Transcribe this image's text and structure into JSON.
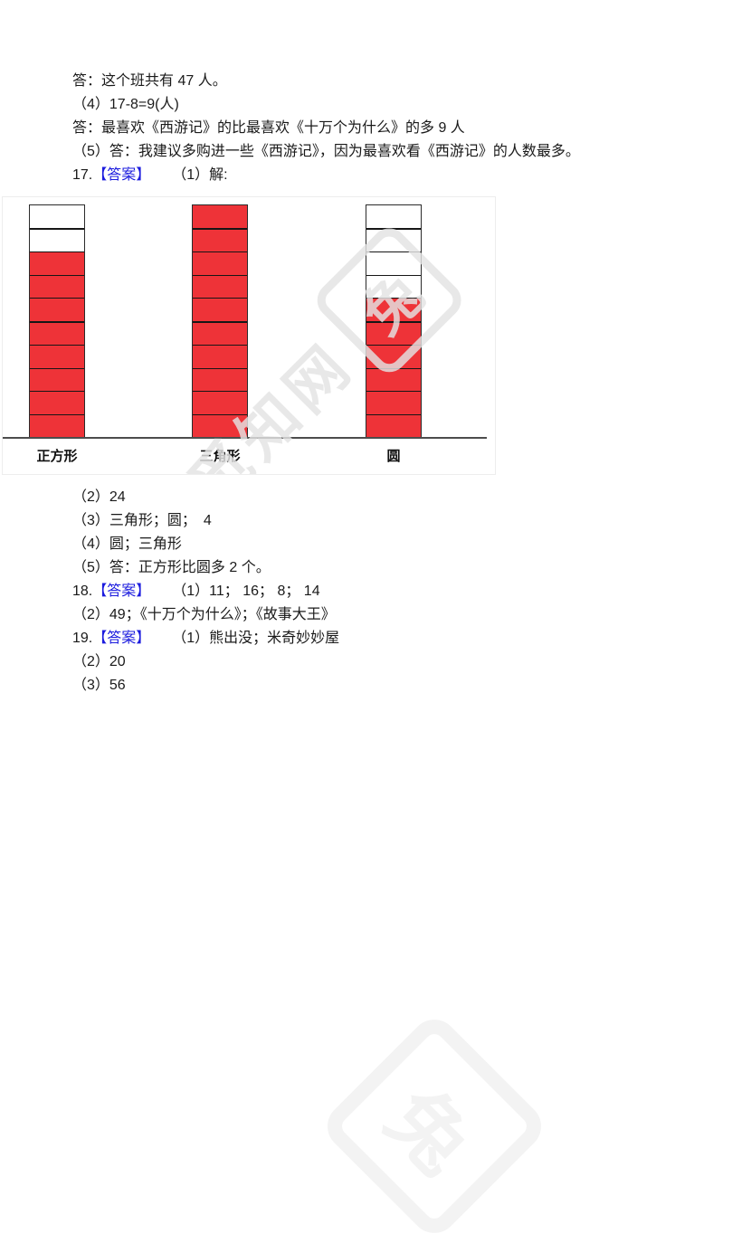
{
  "colors": {
    "answer_blue": "#1b1bde",
    "bar_red": "#ee3338",
    "watermark_overlay": "rgba(227,227,227,0.82)",
    "watermark_faint": "#f3f3f3",
    "axis_gray": "#4d4d4d"
  },
  "answers_top": [
    {
      "text": "答：这个班共有 47 人。"
    },
    {
      "text": "（4）17-8=9(人)"
    },
    {
      "text": "答：最喜欢《西游记》的比最喜欢《十万个为什么》的多 9 人"
    },
    {
      "text": "（5）答：我建议多购进一些《西游记》，因为最喜欢看《西游记》的人数最多。"
    },
    {
      "num": "17.",
      "badge": "【答案】",
      "text": "（1）解:"
    }
  ],
  "chart_data": {
    "type": "bar",
    "title": "",
    "xlabel": "",
    "ylabel": "",
    "categories": [
      "正方形",
      "三角形",
      "圆"
    ],
    "values": [
      8,
      10,
      6
    ],
    "grid_rows_per_column": 10,
    "value_per_cell": 1,
    "style": "pictograph of stacked unit squares, filled from bottom",
    "legend": "none"
  },
  "watermark": {
    "text": "觅知网",
    "logo_glyph": "兔"
  },
  "answers_bottom": [
    {
      "text": "（2）24"
    },
    {
      "text": "（3）三角形；圆；　4"
    },
    {
      "text": "（4）圆；三角形"
    },
    {
      "text": "（5）答：正方形比圆多 2 个。"
    },
    {
      "num": "18.",
      "badge": "【答案】",
      "text": "（1）11； 16； 8； 14"
    },
    {
      "text": "（2）49；《十万个为什么》；《故事大王》"
    },
    {
      "num": "19.",
      "badge": "【答案】",
      "text": "（1）熊出没；米奇妙妙屋"
    },
    {
      "text": "（2）20"
    },
    {
      "text": "（3）56"
    }
  ]
}
